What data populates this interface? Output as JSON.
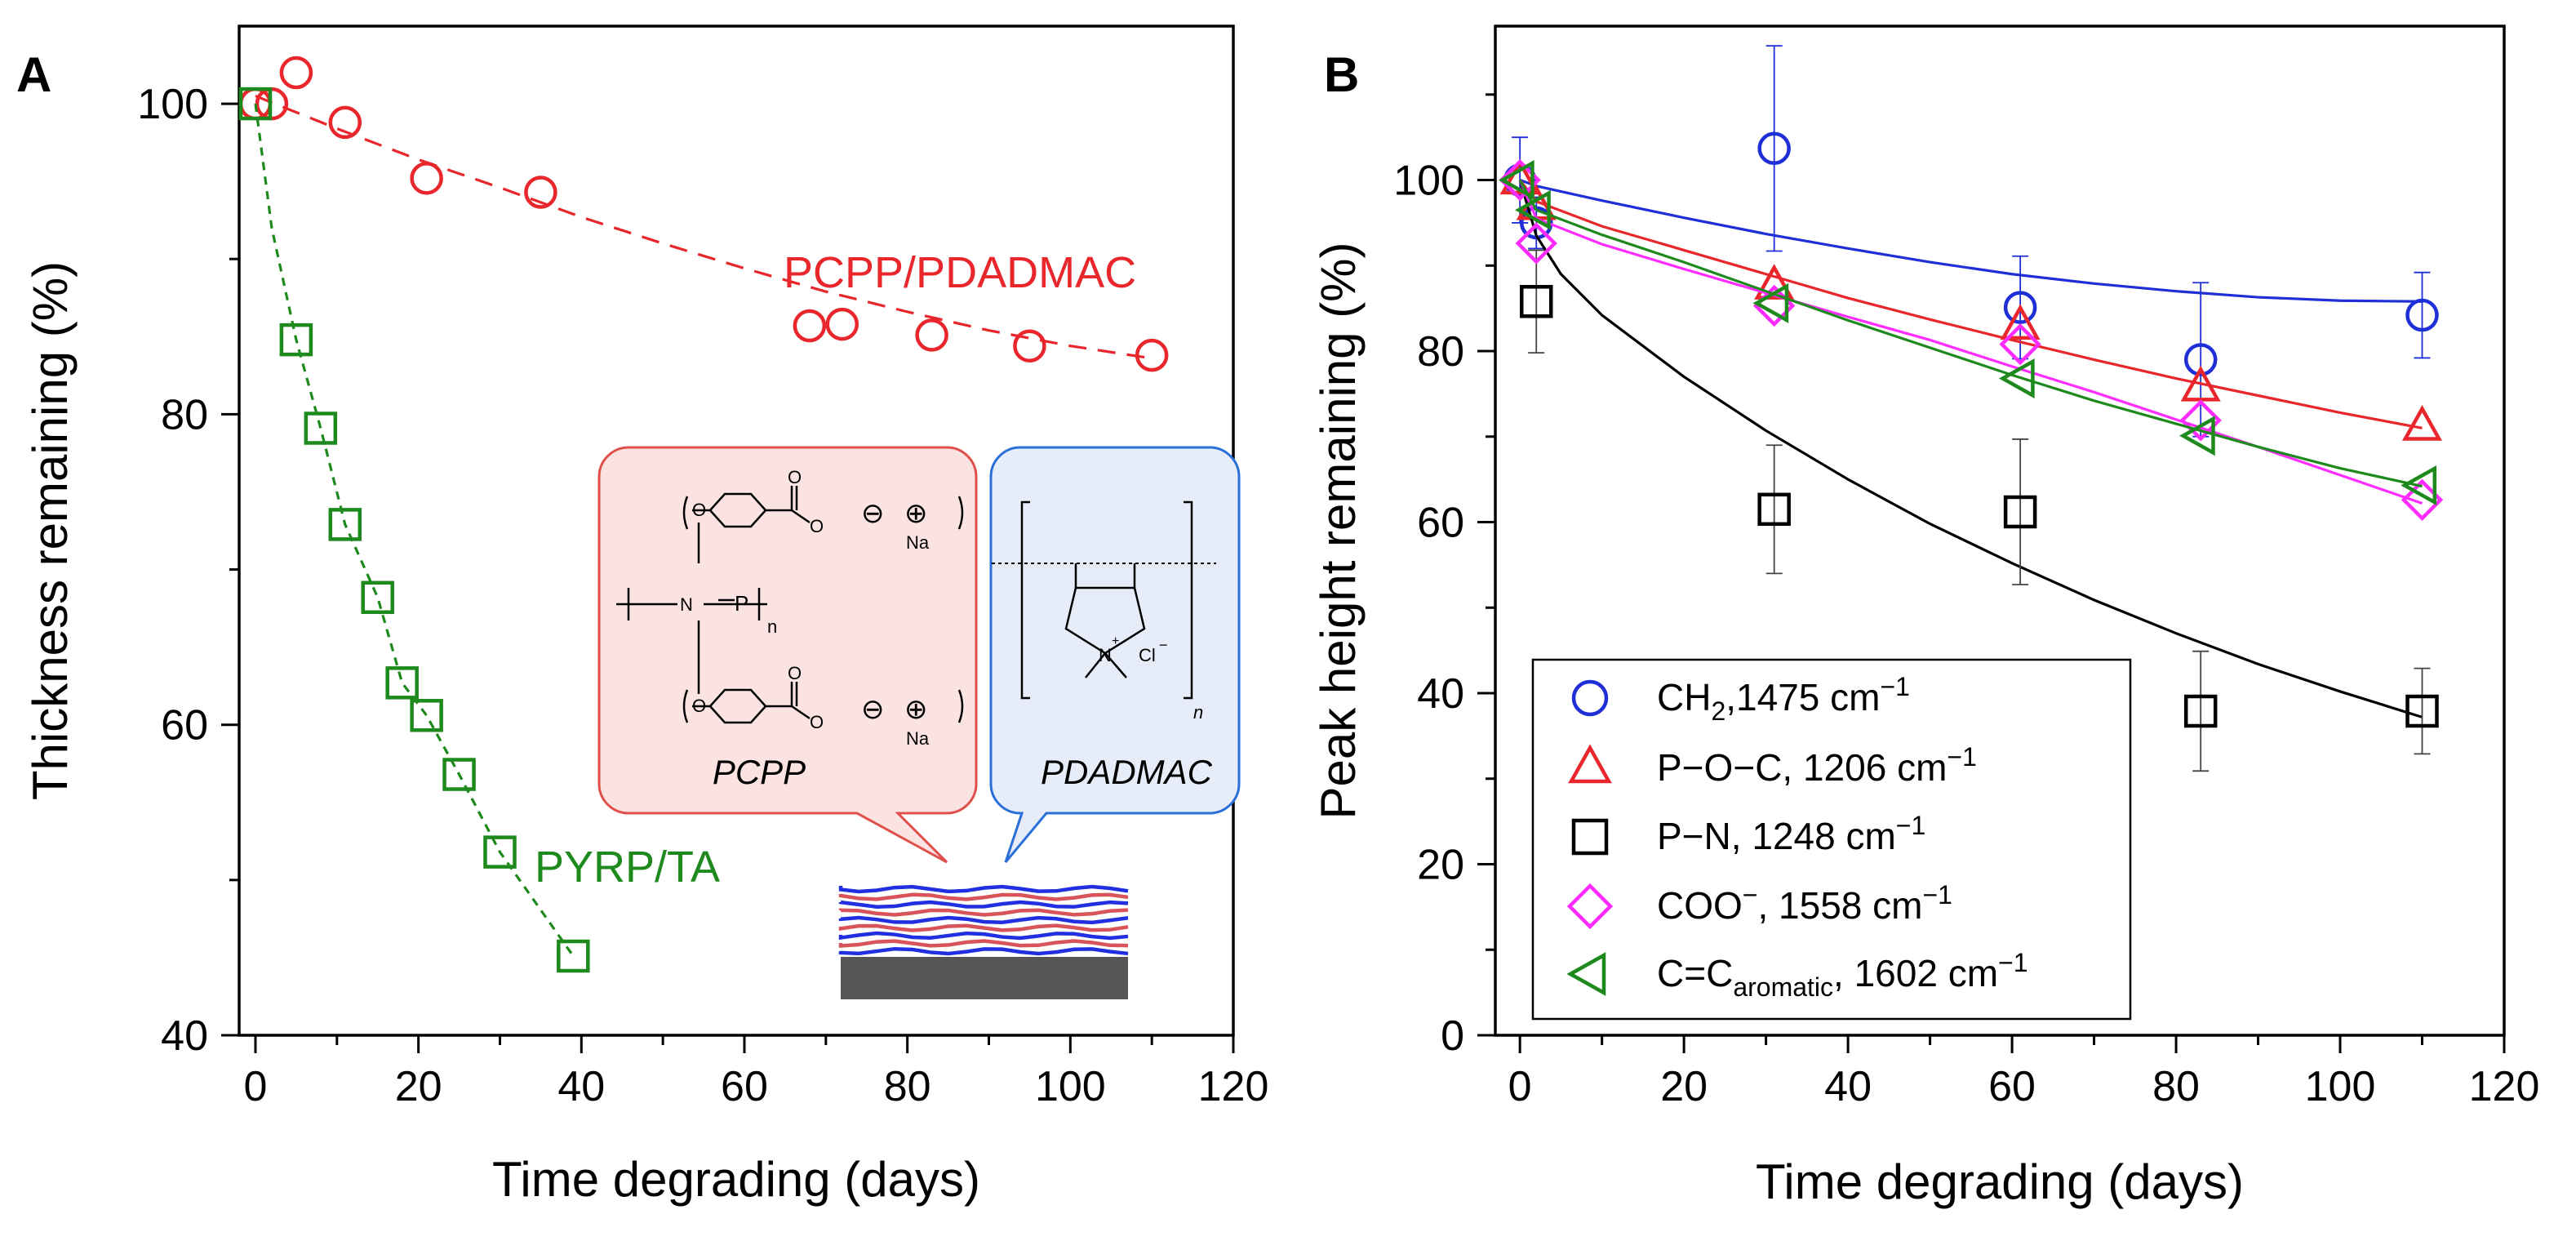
{
  "chart_data": [
    {
      "panel_label": "A",
      "type": "scatter",
      "xlabel": "Time degrading (days)",
      "ylabel": "Thickness remaining (%)",
      "xlim": [
        -2,
        120
      ],
      "ylim": [
        40,
        105
      ],
      "xticks": [
        "0",
        "20",
        "40",
        "60",
        "80",
        "100",
        "120"
      ],
      "xtick_values": [
        0,
        20,
        40,
        60,
        80,
        100,
        120
      ],
      "yticks": [
        "40",
        "60",
        "80",
        "100"
      ],
      "ytick_values": [
        40,
        60,
        80,
        100
      ],
      "series": [
        {
          "name": "PCPP/PDADMAC",
          "label": "PCPP/PDADMAC",
          "color": "#e8262b",
          "marker": "circle",
          "x": [
            0,
            2,
            5,
            11,
            21,
            35,
            68,
            72,
            83,
            95,
            110
          ],
          "y": [
            100,
            100,
            102,
            98.8,
            95.2,
            94.3,
            85.7,
            85.8,
            85.1,
            84.4,
            83.8
          ],
          "fit": {
            "x": [
              0,
              10,
              20,
              30,
              40,
              50,
              60,
              70,
              80,
              90,
              100,
              110
            ],
            "y": [
              100.5,
              98.4,
              96.4,
              94.6,
              92.7,
              91.0,
              89.4,
              87.9,
              86.6,
              85.4,
              84.4,
              83.6
            ]
          }
        },
        {
          "name": "PYRP/TA",
          "label": "PYRP/TA",
          "color": "#1e8a1e",
          "marker": "square",
          "x": [
            0,
            5,
            8,
            11,
            15,
            18,
            21,
            25,
            30,
            39
          ],
          "y": [
            100,
            84.8,
            79.1,
            72.9,
            68.2,
            62.7,
            60.6,
            56.8,
            51.8,
            45.1
          ],
          "fit": {
            "x": [
              0,
              2,
              5,
              8,
              11,
              15,
              18,
              21,
              25,
              30,
              39
            ],
            "y": [
              100,
              92,
              84.8,
              79.1,
              72.9,
              68.2,
              62.7,
              60.6,
              56.8,
              51.8,
              45.1
            ]
          }
        }
      ],
      "inset": {
        "pcpp_label": "PCPP",
        "pdadmac_label": "PDADMAC",
        "chem": {
          "O": "O",
          "Na": "Na",
          "N": "N",
          "P": "P",
          "n": "n",
          "minus": "⊖",
          "plus": "⊕",
          "Nplus": "N",
          "Cl": "Cl",
          "charge_plus": "+",
          "charge_minus": "−"
        }
      }
    },
    {
      "panel_label": "B",
      "type": "scatter",
      "xlabel": "Time degrading (days)",
      "ylabel": "Peak height remaining (%)",
      "xlim": [
        -3,
        120
      ],
      "ylim": [
        0,
        118
      ],
      "xticks": [
        "0",
        "20",
        "40",
        "60",
        "80",
        "100",
        "120"
      ],
      "xtick_values": [
        0,
        20,
        40,
        60,
        80,
        100,
        120
      ],
      "yticks": [
        "0",
        "20",
        "40",
        "60",
        "80",
        "100"
      ],
      "ytick_values": [
        0,
        20,
        40,
        60,
        80,
        100
      ],
      "series": [
        {
          "name": "CH2,1475 cm-1",
          "color": "#1f2fd8",
          "marker": "circle",
          "x": [
            0,
            2,
            31,
            61,
            83,
            110
          ],
          "y": [
            100,
            95,
            103.7,
            85.1,
            79,
            84.2
          ],
          "err": [
            5,
            3,
            12,
            6,
            9,
            5
          ],
          "fit": {
            "x": [
              0,
              2,
              10,
              20,
              30,
              40,
              50,
              60,
              70,
              80,
              90,
              100,
              110
            ],
            "y": [
              100,
              99.3,
              97.6,
              95.6,
              93.7,
              92.0,
              90.4,
              89.0,
              87.9,
              87.0,
              86.3,
              85.9,
              85.8
            ]
          }
        },
        {
          "name": "P-O-C, 1206 cm-1",
          "color": "#e8262b",
          "marker": "triangle-up",
          "x": [
            0,
            2,
            31,
            61,
            83,
            110
          ],
          "y": [
            100,
            97,
            87.7,
            83,
            75.8,
            71.2
          ],
          "err": [
            0,
            0,
            0,
            0,
            0,
            0
          ],
          "fit": {
            "x": [
              0,
              2,
              10,
              20,
              30,
              40,
              50,
              60,
              70,
              80,
              90,
              100,
              110
            ],
            "y": [
              100,
              97.5,
              94.6,
              91.8,
              89.0,
              86.2,
              83.7,
              81.3,
              79.0,
              76.8,
              74.8,
              72.8,
              71.0
            ]
          }
        },
        {
          "name": "P-N, 1248 cm-1",
          "color": "#000000",
          "marker": "square",
          "x": [
            2,
            31,
            61,
            83,
            110
          ],
          "y": [
            85.8,
            61.5,
            61.2,
            37.9,
            37.9
          ],
          "err": [
            6,
            7.5,
            8.5,
            7,
            5
          ],
          "fit": {
            "x": [
              0,
              2,
              5,
              10,
              20,
              30,
              40,
              50,
              60,
              70,
              80,
              90,
              100,
              110
            ],
            "y": [
              100,
              93.5,
              89.0,
              84.2,
              77.0,
              70.7,
              65.0,
              59.8,
              55.2,
              50.9,
              47.0,
              43.4,
              40.2,
              37.2
            ]
          }
        },
        {
          "name": "COO-, 1558 cm-1",
          "color": "#ff2bff",
          "marker": "diamond",
          "x": [
            0,
            2,
            31,
            61,
            83,
            110
          ],
          "y": [
            100,
            92.6,
            85.3,
            80.8,
            71.9,
            62.6
          ],
          "err": [
            0,
            0,
            0,
            0,
            0,
            0
          ],
          "fit": {
            "x": [
              0,
              2,
              10,
              20,
              30,
              40,
              50,
              60,
              70,
              80,
              90,
              100,
              110
            ],
            "y": [
              100,
              95.5,
              92.5,
              89.6,
              86.8,
              84.0,
              81.3,
              78.2,
              75.2,
              72.0,
              68.8,
              65.5,
              62.2
            ]
          }
        },
        {
          "name": "C=C aromatic, 1602 cm-1",
          "color": "#1e8a1e",
          "marker": "triangle-left",
          "x": [
            0,
            2,
            31,
            61,
            83,
            110
          ],
          "y": [
            100,
            96.5,
            85.6,
            76.8,
            70.1,
            64.3
          ],
          "err": [
            0,
            0,
            0,
            0,
            0,
            0
          ],
          "fit": {
            "x": [
              0,
              2,
              10,
              20,
              30,
              40,
              50,
              60,
              70,
              80,
              90,
              100,
              110
            ],
            "y": [
              100,
              96.5,
              93.6,
              90.4,
              87.0,
              83.6,
              80.4,
              77.2,
              74.2,
              71.5,
              68.8,
              66.3,
              64.2
            ]
          }
        }
      ],
      "legend": {
        "placement": "bottom-left",
        "entries": [
          {
            "pre": "CH",
            "sub": "2",
            "mid": ",1475 cm",
            "sup": "−1"
          },
          {
            "pre": "P−O−C, 1206 cm",
            "sub": "",
            "mid": "",
            "sup": "−1"
          },
          {
            "pre": "P−N, 1248 cm",
            "sub": "",
            "mid": "",
            "sup": "−1"
          },
          {
            "pre": "COO",
            "sup0": "−",
            "mid": ", 1558 cm",
            "sup": "−1"
          },
          {
            "pre": "C=C",
            "sub": "aromatic",
            "mid": ", 1602 cm",
            "sup": "−1"
          }
        ]
      }
    }
  ],
  "colors": {
    "pcpp_bubble_fill": "#fbe3e1",
    "pcpp_bubble_stroke": "#e0504a",
    "pdadmac_bubble_fill": "#e6ecf8",
    "pdadmac_bubble_stroke": "#2b6fd8"
  }
}
